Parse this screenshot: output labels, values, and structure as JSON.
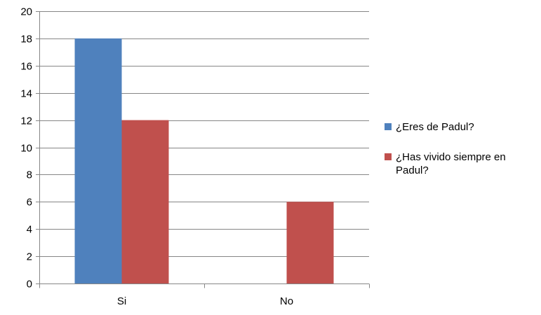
{
  "chart_data": {
    "type": "bar",
    "categories": [
      "Si",
      "No"
    ],
    "series": [
      {
        "name": "¿Eres de Padul?",
        "values": [
          18,
          0
        ],
        "color": "#4F81BD"
      },
      {
        "name": "¿Has vivido siempre en Padul?",
        "values": [
          12,
          6
        ],
        "color": "#C0504D"
      }
    ],
    "title": "",
    "xlabel": "",
    "ylabel": "",
    "ylim": [
      0,
      20
    ],
    "yticks": [
      0,
      2,
      4,
      6,
      8,
      10,
      12,
      14,
      16,
      18,
      20
    ],
    "grid": true,
    "legend_position": "right"
  }
}
